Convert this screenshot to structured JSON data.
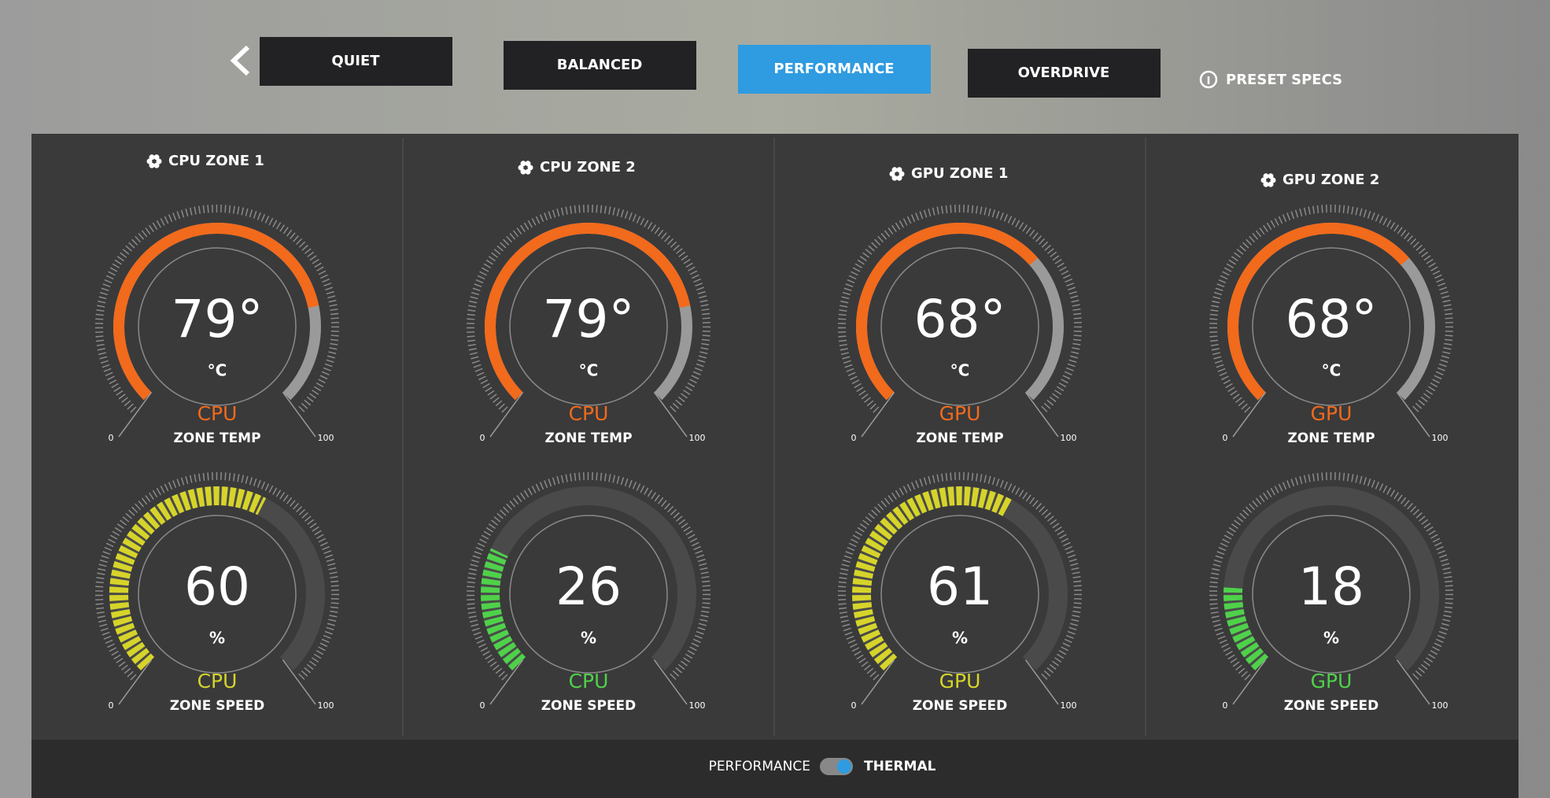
{
  "nav": {
    "buttons": [
      {
        "label": "QUIET",
        "active": false
      },
      {
        "label": "BALANCED",
        "active": false
      },
      {
        "label": "PERFORMANCE",
        "active": true
      },
      {
        "label": "OVERDRIVE",
        "active": false
      }
    ],
    "preset_specs": "PRESET SPECS"
  },
  "zones": [
    {
      "title": "CPU ZONE 1",
      "temp": {
        "value": 79,
        "value_label": "79°",
        "unit": "°C",
        "label": "CPU",
        "caption": "ZONE TEMP",
        "min": 0,
        "max": 100,
        "color": "#f26a1b"
      },
      "speed": {
        "value": 60,
        "unit": "%",
        "label": "CPU",
        "caption": "ZONE SPEED",
        "min": 0,
        "max": 100,
        "color": "#d6d42a"
      }
    },
    {
      "title": "CPU ZONE 2",
      "temp": {
        "value": 79,
        "value_label": "79°",
        "unit": "°C",
        "label": "CPU",
        "caption": "ZONE TEMP",
        "min": 0,
        "max": 100,
        "color": "#f26a1b"
      },
      "speed": {
        "value": 26,
        "unit": "%",
        "label": "CPU",
        "caption": "ZONE SPEED",
        "min": 0,
        "max": 100,
        "color": "#4fd14a"
      }
    },
    {
      "title": "GPU ZONE 1",
      "temp": {
        "value": 68,
        "value_label": "68°",
        "unit": "°C",
        "label": "GPU",
        "caption": "ZONE TEMP",
        "min": 0,
        "max": 100,
        "color": "#f26a1b"
      },
      "speed": {
        "value": 61,
        "unit": "%",
        "label": "GPU",
        "caption": "ZONE SPEED",
        "min": 0,
        "max": 100,
        "color": "#d6d42a"
      }
    },
    {
      "title": "GPU ZONE 2",
      "temp": {
        "value": 68,
        "value_label": "68°",
        "unit": "°C",
        "label": "GPU",
        "caption": "ZONE TEMP",
        "min": 0,
        "max": 100,
        "color": "#f26a1b"
      },
      "speed": {
        "value": 18,
        "unit": "%",
        "label": "GPU",
        "caption": "ZONE SPEED",
        "min": 0,
        "max": 100,
        "color": "#4fd14a"
      }
    }
  ],
  "footer": {
    "left": "PERFORMANCE",
    "right": "THERMAL"
  }
}
